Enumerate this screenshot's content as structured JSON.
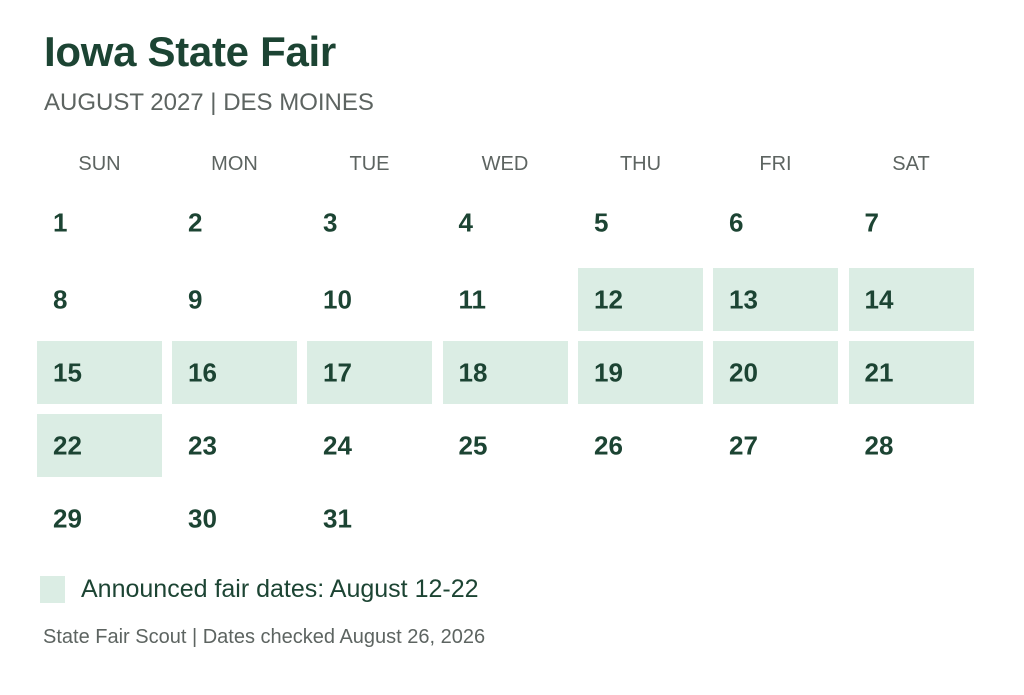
{
  "header": {
    "title": "Iowa State Fair",
    "subtitle": "AUGUST 2027  |  DES MOINES"
  },
  "weekdays": [
    "SUN",
    "MON",
    "TUE",
    "WED",
    "THU",
    "FRI",
    "SAT"
  ],
  "calendar": {
    "first_weekday_index": 0,
    "days_in_month": 31,
    "highlighted_days": [
      12,
      13,
      14,
      15,
      16,
      17,
      18,
      19,
      20,
      21,
      22
    ]
  },
  "legend": {
    "label": "Announced fair dates: August 12-22",
    "swatch_color": "#dbede4"
  },
  "footer": {
    "text": "State Fair Scout | Dates checked August 26, 2026"
  },
  "colors": {
    "primary": "#1c4433",
    "muted": "#5d6461",
    "highlight": "#dbede4"
  }
}
